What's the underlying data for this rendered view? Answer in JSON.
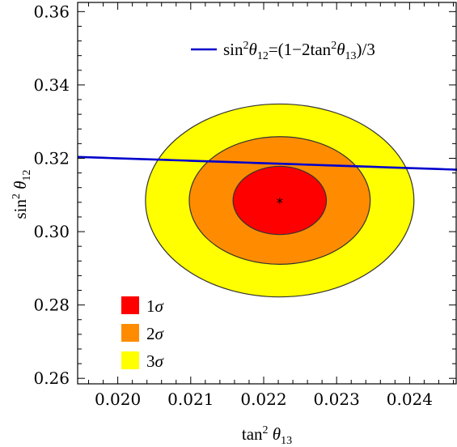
{
  "chart_data": {
    "type": "contour",
    "xlabel": {
      "base": "tan",
      "sup": "2",
      "theta": " θ",
      "sub": "13"
    },
    "ylabel": {
      "base": "sin",
      "sup": "2",
      "theta": " θ",
      "sub": "12"
    },
    "xlim": [
      0.01945,
      0.02465
    ],
    "ylim": [
      0.2585,
      0.3625
    ],
    "x_ticks": [
      {
        "value": 0.02,
        "label": "0.020"
      },
      {
        "value": 0.021,
        "label": "0.021"
      },
      {
        "value": 0.022,
        "label": "0.022"
      },
      {
        "value": 0.023,
        "label": "0.023"
      },
      {
        "value": 0.024,
        "label": "0.024"
      }
    ],
    "y_ticks": [
      {
        "value": 0.26,
        "label": "0.26"
      },
      {
        "value": 0.28,
        "label": "0.28"
      },
      {
        "value": 0.3,
        "label": "0.30"
      },
      {
        "value": 0.32,
        "label": "0.32"
      },
      {
        "value": 0.34,
        "label": "0.34"
      },
      {
        "value": 0.36,
        "label": "0.36"
      }
    ],
    "best_fit": {
      "x": 0.02222,
      "y": 0.3085,
      "marker": "*"
    },
    "regions": [
      {
        "name": "3σ",
        "label_num": "3",
        "label_sym": "σ",
        "color": "#ffff00",
        "rx": 0.00184,
        "ry": 0.0263
      },
      {
        "name": "2σ",
        "label_num": "2",
        "label_sym": "σ",
        "color": "#ff8c00",
        "rx": 0.00124,
        "ry": 0.0174
      },
      {
        "name": "1σ",
        "label_num": "1",
        "label_sym": "σ",
        "color": "#ff0000",
        "rx": 0.00064,
        "ry": 0.0093
      }
    ],
    "curve": {
      "label_parts": [
        "sin",
        "2",
        "θ",
        "12",
        "=(1−2tan",
        "2",
        "θ",
        "13",
        ")/3"
      ],
      "color": "#0000cc",
      "x_range": [
        0.01945,
        0.02465
      ]
    },
    "grid": false,
    "legend": "bottom-left"
  }
}
